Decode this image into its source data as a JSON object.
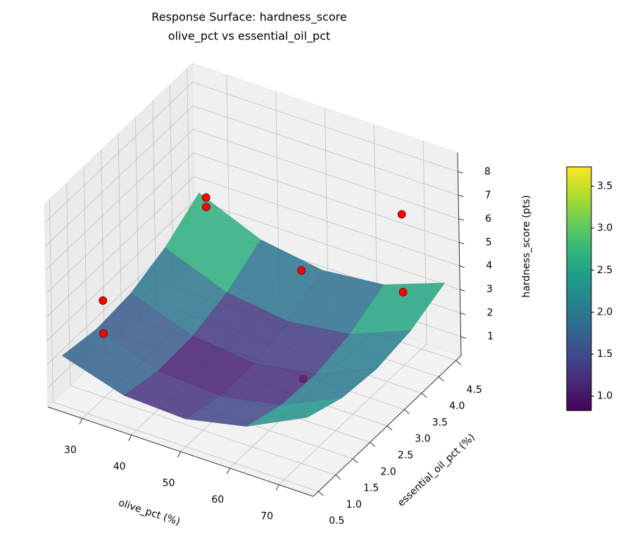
{
  "chart_data": {
    "type": "surface3d",
    "title": "Response Surface: hardness_score",
    "subtitle": "olive_pct vs essential_oil_pct",
    "xlabel": "olive_pct (%)",
    "ylabel": "essential_oil_pct (%)",
    "zlabel": "hardness_score (pts)",
    "xlim": [
      23,
      77
    ],
    "ylim": [
      0.35,
      4.65
    ],
    "zlim": [
      0.2,
      8.8
    ],
    "xticks": [
      30,
      40,
      50,
      60,
      70
    ],
    "yticks": [
      0.5,
      {
        "value": 1,
        "label": "1.0"
      },
      1.5,
      {
        "value": 2,
        "label": "2.0"
      },
      2.5,
      {
        "value": 3,
        "label": "3.0"
      },
      3.5,
      {
        "value": 4,
        "label": "4.0"
      },
      4.5
    ],
    "zticks": [
      1,
      2,
      3,
      4,
      5,
      6,
      7,
      8
    ],
    "grid": true,
    "surface": {
      "x": [
        25,
        37.5,
        50,
        62.5,
        75
      ],
      "y": [
        0.5,
        1.5,
        2.5,
        3.5,
        4.5
      ],
      "z": [
        [
          2.31,
          1.5,
          1.38,
          1.94,
          3.2
        ],
        [
          2.05,
          1.16,
          0.97,
          1.46,
          2.64
        ],
        [
          2.18,
          1.23,
          0.95,
          1.37,
          2.47
        ],
        [
          2.72,
          1.69,
          1.34,
          1.68,
          2.71
        ],
        [
          3.66,
          2.55,
          2.13,
          2.4,
          3.35
        ]
      ],
      "colormap": "viridis",
      "clim": [
        0.83,
        3.73
      ],
      "cticks": [
        {
          "value": 1,
          "label": "1.0"
        },
        1.5,
        {
          "value": 2,
          "label": "2.0"
        },
        2.5,
        {
          "value": 3,
          "label": "3.0"
        },
        3.5
      ]
    },
    "scatter": {
      "x": [
        30,
        30,
        30,
        30,
        60,
        70,
        70,
        60
      ],
      "y": [
        1,
        1,
        4,
        4,
        2.5,
        4,
        4,
        2.5
      ],
      "z": [
        2.9,
        4.3,
        4.1,
        4.5,
        5.6,
        6.6,
        3.3,
        1.0
      ],
      "color": "#ff0000"
    }
  }
}
